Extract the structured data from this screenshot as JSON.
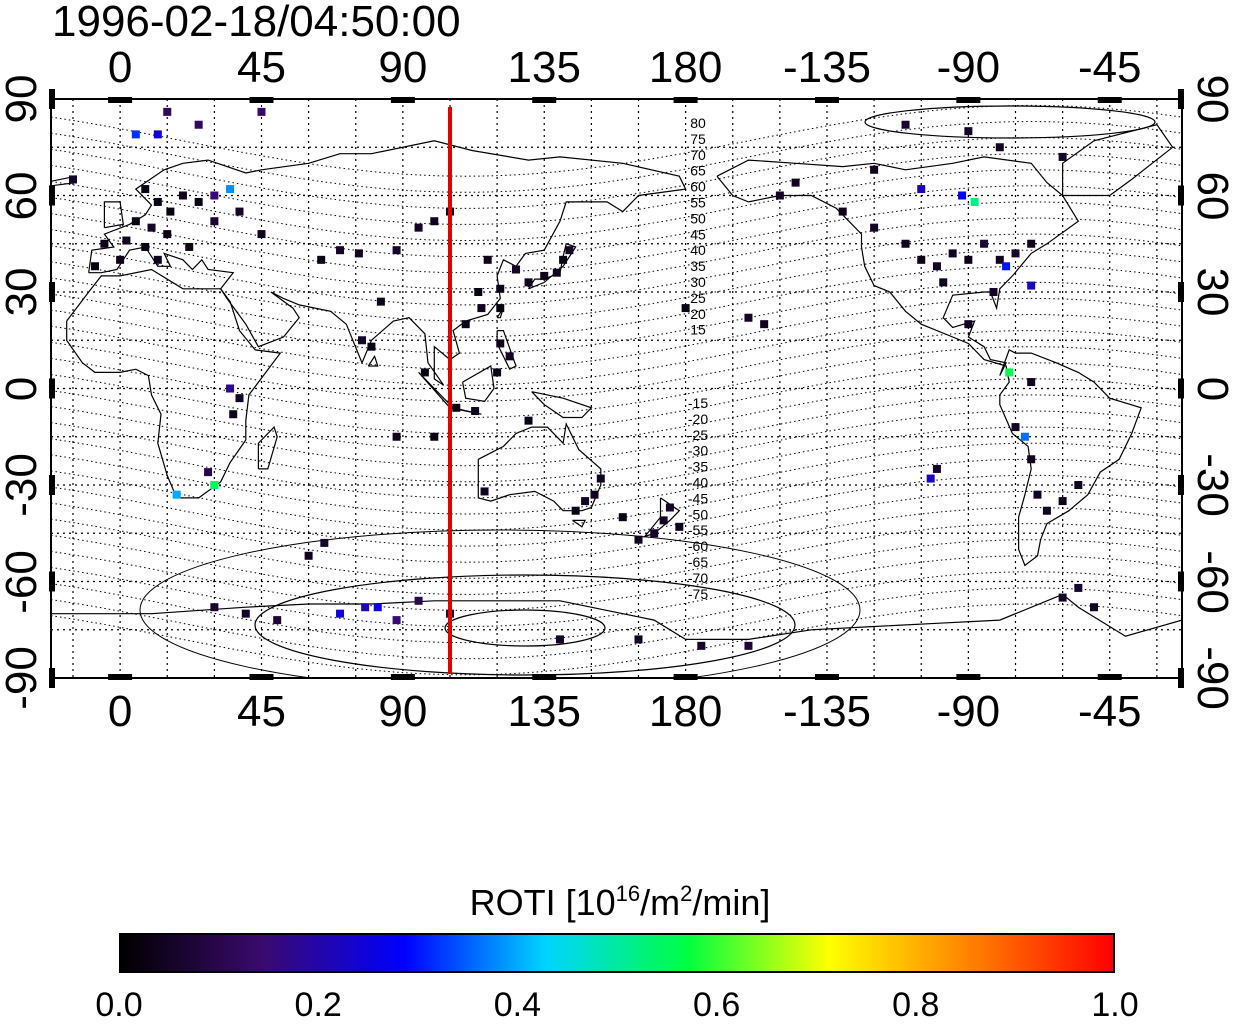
{
  "title": "1996-02-18/04:50:00",
  "axes": {
    "x_ticks_top": [
      "0",
      "45",
      "90",
      "135",
      "180",
      "-135",
      "-90",
      "-45"
    ],
    "x_ticks_bottom": [
      "0",
      "45",
      "90",
      "135",
      "180",
      "-135",
      "-90",
      "-45"
    ],
    "y_ticks_left": [
      "90",
      "60",
      "30",
      "0",
      "-30",
      "-60",
      "-90"
    ],
    "y_ticks_right": [
      "90",
      "60",
      "30",
      "0",
      "-30",
      "-60",
      "-90"
    ],
    "lon_range": [
      -22,
      338
    ],
    "lat_range": [
      -90,
      90
    ],
    "grid": true,
    "grid_step_lon": 15,
    "grid_step_lat": 15
  },
  "marker_line": {
    "longitude": 105,
    "color": "#e00000"
  },
  "contour_labels": {
    "north": [
      "80",
      "75",
      "70",
      "65",
      "60",
      "55",
      "50",
      "45",
      "40",
      "35",
      "30",
      "25",
      "20",
      "15"
    ],
    "south": [
      "-15",
      "-20",
      "-25",
      "-30",
      "-35",
      "-40",
      "-45",
      "-50",
      "-55",
      "-60",
      "-65",
      "-70",
      "-75"
    ]
  },
  "colorbar": {
    "title_prefix": "ROTI  [10",
    "title_sup1": "16",
    "title_mid": "/m",
    "title_sup2": "2",
    "title_suffix": "/min]",
    "ticks": [
      "0.0",
      "0.2",
      "0.4",
      "0.6",
      "0.8",
      "1.0"
    ],
    "range": [
      0.0,
      1.0
    ],
    "colormap": [
      "#000000",
      "#3a0a6e",
      "#0000ff",
      "#00d5ff",
      "#00ff40",
      "#ffff00",
      "#ff8000",
      "#ff0000"
    ]
  },
  "chart_data": {
    "type": "scatter",
    "title": "1996-02-18/04:50:00",
    "xlabel": "",
    "ylabel": "",
    "xlim": [
      -22,
      338
    ],
    "ylim": [
      -90,
      90
    ],
    "grid": true,
    "series": [
      {
        "name": "ROTI",
        "points": [
          {
            "lon": 8,
            "lat": 62,
            "v": 0.02
          },
          {
            "lon": 12,
            "lat": 58,
            "v": 0.03
          },
          {
            "lon": 16,
            "lat": 55,
            "v": 0.02
          },
          {
            "lon": 20,
            "lat": 60,
            "v": 0.04
          },
          {
            "lon": 25,
            "lat": 58,
            "v": 0.03
          },
          {
            "lon": 5,
            "lat": 52,
            "v": 0.02
          },
          {
            "lon": 10,
            "lat": 50,
            "v": 0.05
          },
          {
            "lon": 15,
            "lat": 48,
            "v": 0.03
          },
          {
            "lon": 2,
            "lat": 46,
            "v": 0.04
          },
          {
            "lon": -5,
            "lat": 45,
            "v": 0.03
          },
          {
            "lon": 8,
            "lat": 44,
            "v": 0.02
          },
          {
            "lon": 22,
            "lat": 44,
            "v": 0.03
          },
          {
            "lon": 30,
            "lat": 60,
            "v": 0.15
          },
          {
            "lon": 35,
            "lat": 62,
            "v": 0.38
          },
          {
            "lon": 30,
            "lat": 52,
            "v": 0.06
          },
          {
            "lon": 12,
            "lat": 40,
            "v": 0.04
          },
          {
            "lon": 0,
            "lat": 40,
            "v": 0.03
          },
          {
            "lon": -8,
            "lat": 38,
            "v": 0.02
          },
          {
            "lon": -15,
            "lat": 65,
            "v": 0.05
          },
          {
            "lon": 5,
            "lat": 79,
            "v": 0.32
          },
          {
            "lon": 12,
            "lat": 79,
            "v": 0.25
          },
          {
            "lon": 25,
            "lat": 82,
            "v": 0.12
          },
          {
            "lon": 45,
            "lat": 86,
            "v": 0.14
          },
          {
            "lon": 15,
            "lat": 86,
            "v": 0.12
          },
          {
            "lon": 38,
            "lat": 55,
            "v": 0.05
          },
          {
            "lon": 45,
            "lat": 48,
            "v": 0.04
          },
          {
            "lon": 70,
            "lat": 43,
            "v": 0.05
          },
          {
            "lon": 76,
            "lat": 42,
            "v": 0.04
          },
          {
            "lon": 64,
            "lat": 40,
            "v": 0.03
          },
          {
            "lon": 88,
            "lat": 43,
            "v": 0.06
          },
          {
            "lon": 95,
            "lat": 50,
            "v": 0.05
          },
          {
            "lon": 100,
            "lat": 52,
            "v": 0.04
          },
          {
            "lon": 105,
            "lat": 55,
            "v": 0.03
          },
          {
            "lon": 77,
            "lat": 15,
            "v": 0.05
          },
          {
            "lon": 80,
            "lat": 13,
            "v": 0.03
          },
          {
            "lon": 83,
            "lat": 27,
            "v": 0.04
          },
          {
            "lon": 35,
            "lat": 0,
            "v": 0.18
          },
          {
            "lon": 38,
            "lat": -3,
            "v": 0.05
          },
          {
            "lon": 36,
            "lat": -8,
            "v": 0.04
          },
          {
            "lon": 18,
            "lat": -33,
            "v": 0.4
          },
          {
            "lon": 28,
            "lat": -26,
            "v": 0.1
          },
          {
            "lon": 30,
            "lat": -30,
            "v": 0.55
          },
          {
            "lon": 110,
            "lat": 20,
            "v": 0.03
          },
          {
            "lon": 115,
            "lat": 25,
            "v": 0.04
          },
          {
            "lon": 121,
            "lat": 25,
            "v": 0.02
          },
          {
            "lon": 121,
            "lat": 31,
            "v": 0.03
          },
          {
            "lon": 126,
            "lat": 37,
            "v": 0.05
          },
          {
            "lon": 130,
            "lat": 33,
            "v": 0.04
          },
          {
            "lon": 135,
            "lat": 35,
            "v": 0.03
          },
          {
            "lon": 139,
            "lat": 36,
            "v": 0.04
          },
          {
            "lon": 141,
            "lat": 40,
            "v": 0.03
          },
          {
            "lon": 143,
            "lat": 43,
            "v": 0.05
          },
          {
            "lon": 117,
            "lat": 40,
            "v": 0.03
          },
          {
            "lon": 114,
            "lat": 30,
            "v": 0.02
          },
          {
            "lon": 121,
            "lat": 14,
            "v": 0.03
          },
          {
            "lon": 124,
            "lat": 10,
            "v": 0.05
          },
          {
            "lon": 120,
            "lat": 5,
            "v": 0.03
          },
          {
            "lon": 113,
            "lat": -7,
            "v": 0.04
          },
          {
            "lon": 107,
            "lat": -6,
            "v": 0.03
          },
          {
            "lon": 97,
            "lat": 5,
            "v": 0.02
          },
          {
            "lon": 100,
            "lat": -15,
            "v": 0.03
          },
          {
            "lon": 88,
            "lat": -15,
            "v": 0.04
          },
          {
            "lon": 130,
            "lat": -10,
            "v": 0.03
          },
          {
            "lon": 116,
            "lat": -32,
            "v": 0.04
          },
          {
            "lon": 148,
            "lat": -35,
            "v": 0.05
          },
          {
            "lon": 151,
            "lat": -33,
            "v": 0.04
          },
          {
            "lon": 145,
            "lat": -38,
            "v": 0.03
          },
          {
            "lon": 153,
            "lat": -28,
            "v": 0.04
          },
          {
            "lon": 175,
            "lat": -37,
            "v": 0.05
          },
          {
            "lon": 173,
            "lat": -41,
            "v": 0.04
          },
          {
            "lon": 170,
            "lat": -45,
            "v": 0.06
          },
          {
            "lon": 178,
            "lat": -43,
            "v": 0.03
          },
          {
            "lon": 160,
            "lat": -40,
            "v": 0.03
          },
          {
            "lon": 165,
            "lat": -47,
            "v": 0.04
          },
          {
            "lon": 200,
            "lat": 22,
            "v": 0.05
          },
          {
            "lon": 205,
            "lat": 20,
            "v": 0.04
          },
          {
            "lon": 180,
            "lat": 25,
            "v": 0.03
          },
          {
            "lon": 210,
            "lat": 60,
            "v": 0.05
          },
          {
            "lon": 215,
            "lat": 64,
            "v": 0.04
          },
          {
            "lon": 230,
            "lat": 55,
            "v": 0.03
          },
          {
            "lon": 240,
            "lat": 50,
            "v": 0.05
          },
          {
            "lon": 250,
            "lat": 45,
            "v": 0.04
          },
          {
            "lon": 255,
            "lat": 40,
            "v": 0.03
          },
          {
            "lon": 260,
            "lat": 38,
            "v": 0.05
          },
          {
            "lon": 265,
            "lat": 42,
            "v": 0.04
          },
          {
            "lon": 270,
            "lat": 40,
            "v": 0.03
          },
          {
            "lon": 275,
            "lat": 45,
            "v": 0.06
          },
          {
            "lon": 280,
            "lat": 40,
            "v": 0.04
          },
          {
            "lon": 285,
            "lat": 42,
            "v": 0.05
          },
          {
            "lon": 290,
            "lat": 45,
            "v": 0.03
          },
          {
            "lon": 282,
            "lat": 38,
            "v": 0.3
          },
          {
            "lon": 268,
            "lat": 60,
            "v": 0.27
          },
          {
            "lon": 272,
            "lat": 58,
            "v": 0.52
          },
          {
            "lon": 255,
            "lat": 62,
            "v": 0.22
          },
          {
            "lon": 262,
            "lat": 33,
            "v": 0.04
          },
          {
            "lon": 278,
            "lat": 30,
            "v": 0.05
          },
          {
            "lon": 290,
            "lat": 32,
            "v": 0.22
          },
          {
            "lon": 270,
            "lat": 20,
            "v": 0.04
          },
          {
            "lon": 283,
            "lat": 5,
            "v": 0.56
          },
          {
            "lon": 290,
            "lat": 2,
            "v": 0.04
          },
          {
            "lon": 285,
            "lat": -12,
            "v": 0.05
          },
          {
            "lon": 288,
            "lat": -15,
            "v": 0.36
          },
          {
            "lon": 290,
            "lat": -22,
            "v": 0.04
          },
          {
            "lon": 292,
            "lat": -33,
            "v": 0.05
          },
          {
            "lon": 295,
            "lat": -38,
            "v": 0.04
          },
          {
            "lon": 300,
            "lat": -35,
            "v": 0.03
          },
          {
            "lon": 305,
            "lat": -30,
            "v": 0.04
          },
          {
            "lon": 258,
            "lat": -28,
            "v": 0.22
          },
          {
            "lon": 260,
            "lat": -25,
            "v": 0.05
          },
          {
            "lon": 250,
            "lat": 82,
            "v": 0.06
          },
          {
            "lon": 270,
            "lat": 80,
            "v": 0.05
          },
          {
            "lon": 280,
            "lat": 75,
            "v": 0.04
          },
          {
            "lon": 300,
            "lat": 72,
            "v": 0.05
          },
          {
            "lon": 240,
            "lat": 68,
            "v": 0.04
          },
          {
            "lon": 60,
            "lat": -52,
            "v": 0.04
          },
          {
            "lon": 65,
            "lat": -48,
            "v": 0.05
          },
          {
            "lon": 70,
            "lat": -70,
            "v": 0.25
          },
          {
            "lon": 78,
            "lat": -68,
            "v": 0.22
          },
          {
            "lon": 82,
            "lat": -68,
            "v": 0.26
          },
          {
            "lon": 88,
            "lat": -72,
            "v": 0.15
          },
          {
            "lon": 95,
            "lat": -66,
            "v": 0.1
          },
          {
            "lon": 105,
            "lat": -70,
            "v": 0.08
          },
          {
            "lon": 30,
            "lat": -68,
            "v": 0.06
          },
          {
            "lon": 40,
            "lat": -70,
            "v": 0.05
          },
          {
            "lon": 50,
            "lat": -72,
            "v": 0.07
          },
          {
            "lon": 140,
            "lat": -78,
            "v": 0.05
          },
          {
            "lon": 165,
            "lat": -78,
            "v": 0.04
          },
          {
            "lon": 185,
            "lat": -80,
            "v": 0.06
          },
          {
            "lon": 200,
            "lat": -80,
            "v": 0.07
          },
          {
            "lon": 300,
            "lat": -65,
            "v": 0.05
          },
          {
            "lon": 305,
            "lat": -62,
            "v": 0.06
          },
          {
            "lon": 310,
            "lat": -68,
            "v": 0.04
          }
        ]
      }
    ]
  }
}
